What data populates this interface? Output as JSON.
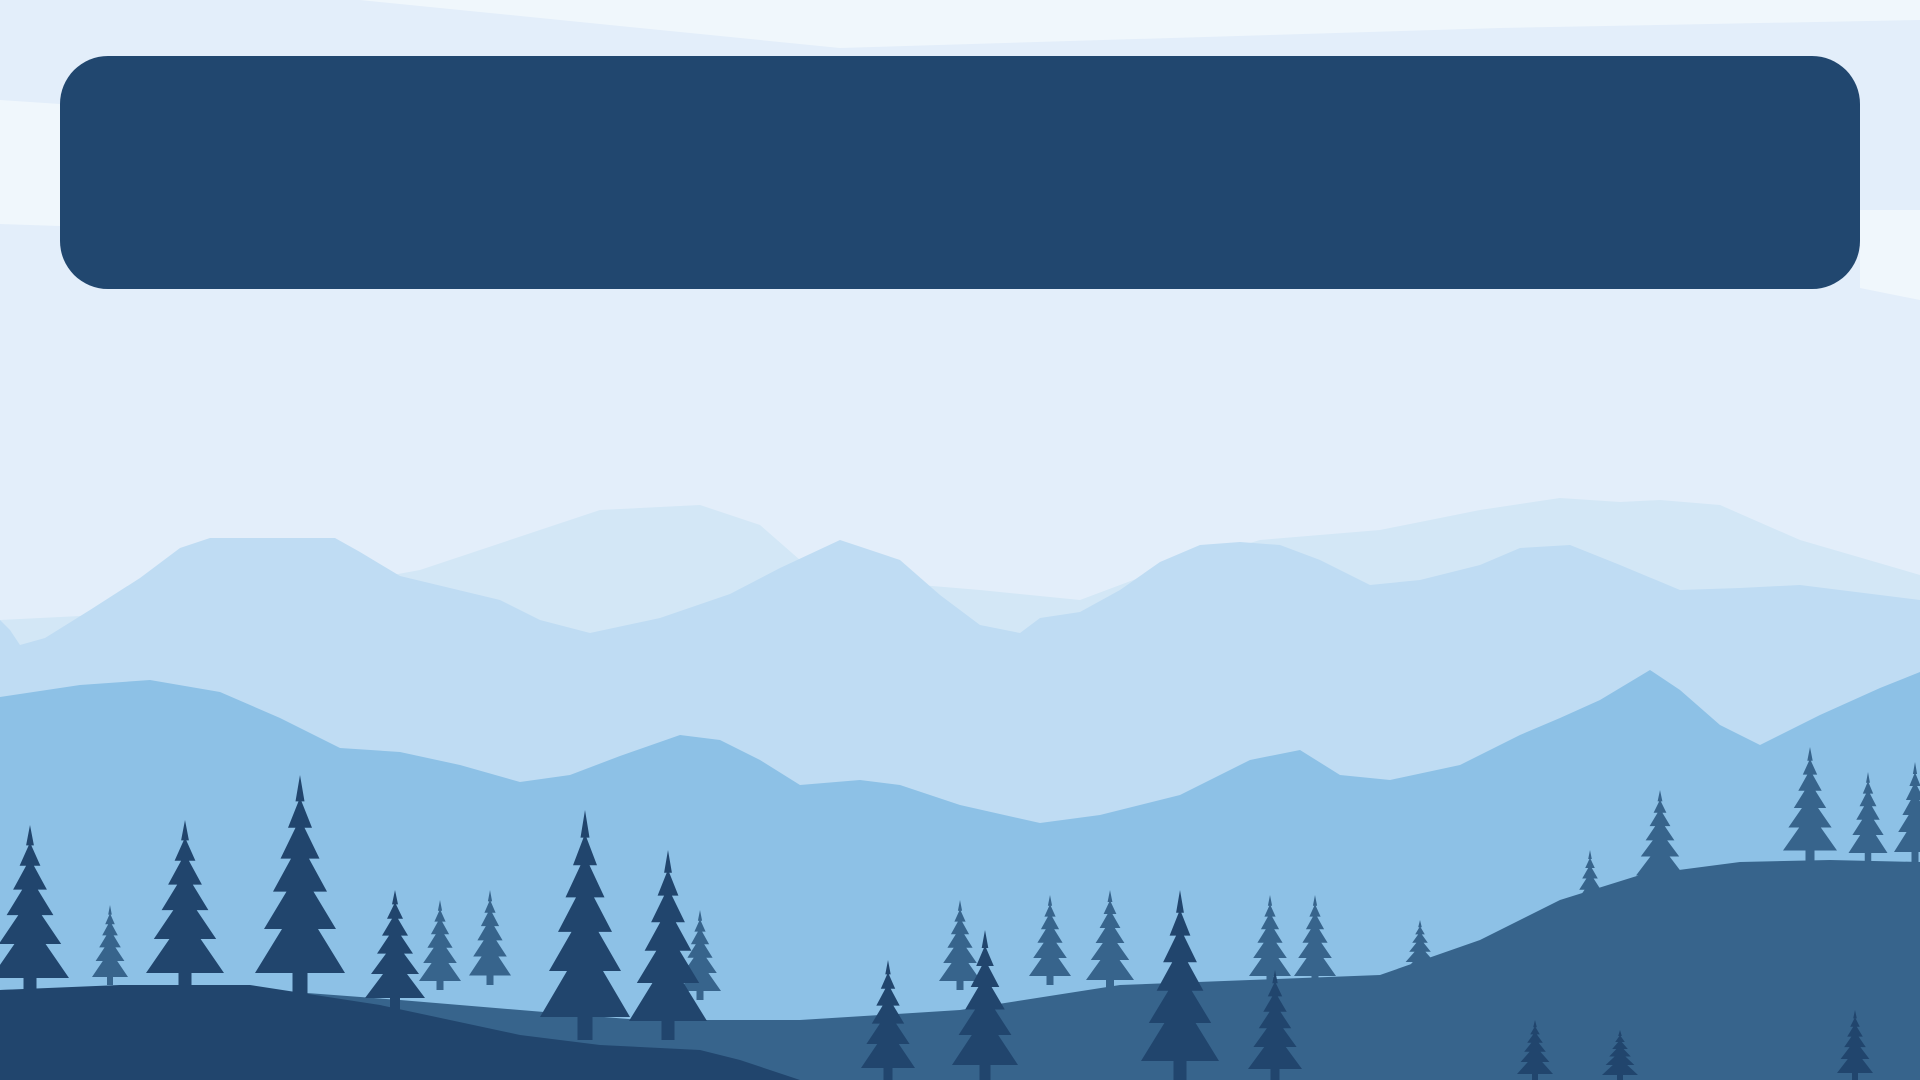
{
  "scene": {
    "name": "misty-mountain-forest-landscape",
    "colors": {
      "sky": "#e3eefa",
      "sky_highlight": "#f0f7fc",
      "mountain_far": "#d3e7f6",
      "mountain_mid": "#bfdcf3",
      "hills_near": "#8dc1e6",
      "forest_back": "#37648c",
      "forest_front": "#21456d",
      "banner": "#21476f"
    }
  },
  "banner": {
    "title": "",
    "subtitle": ""
  }
}
